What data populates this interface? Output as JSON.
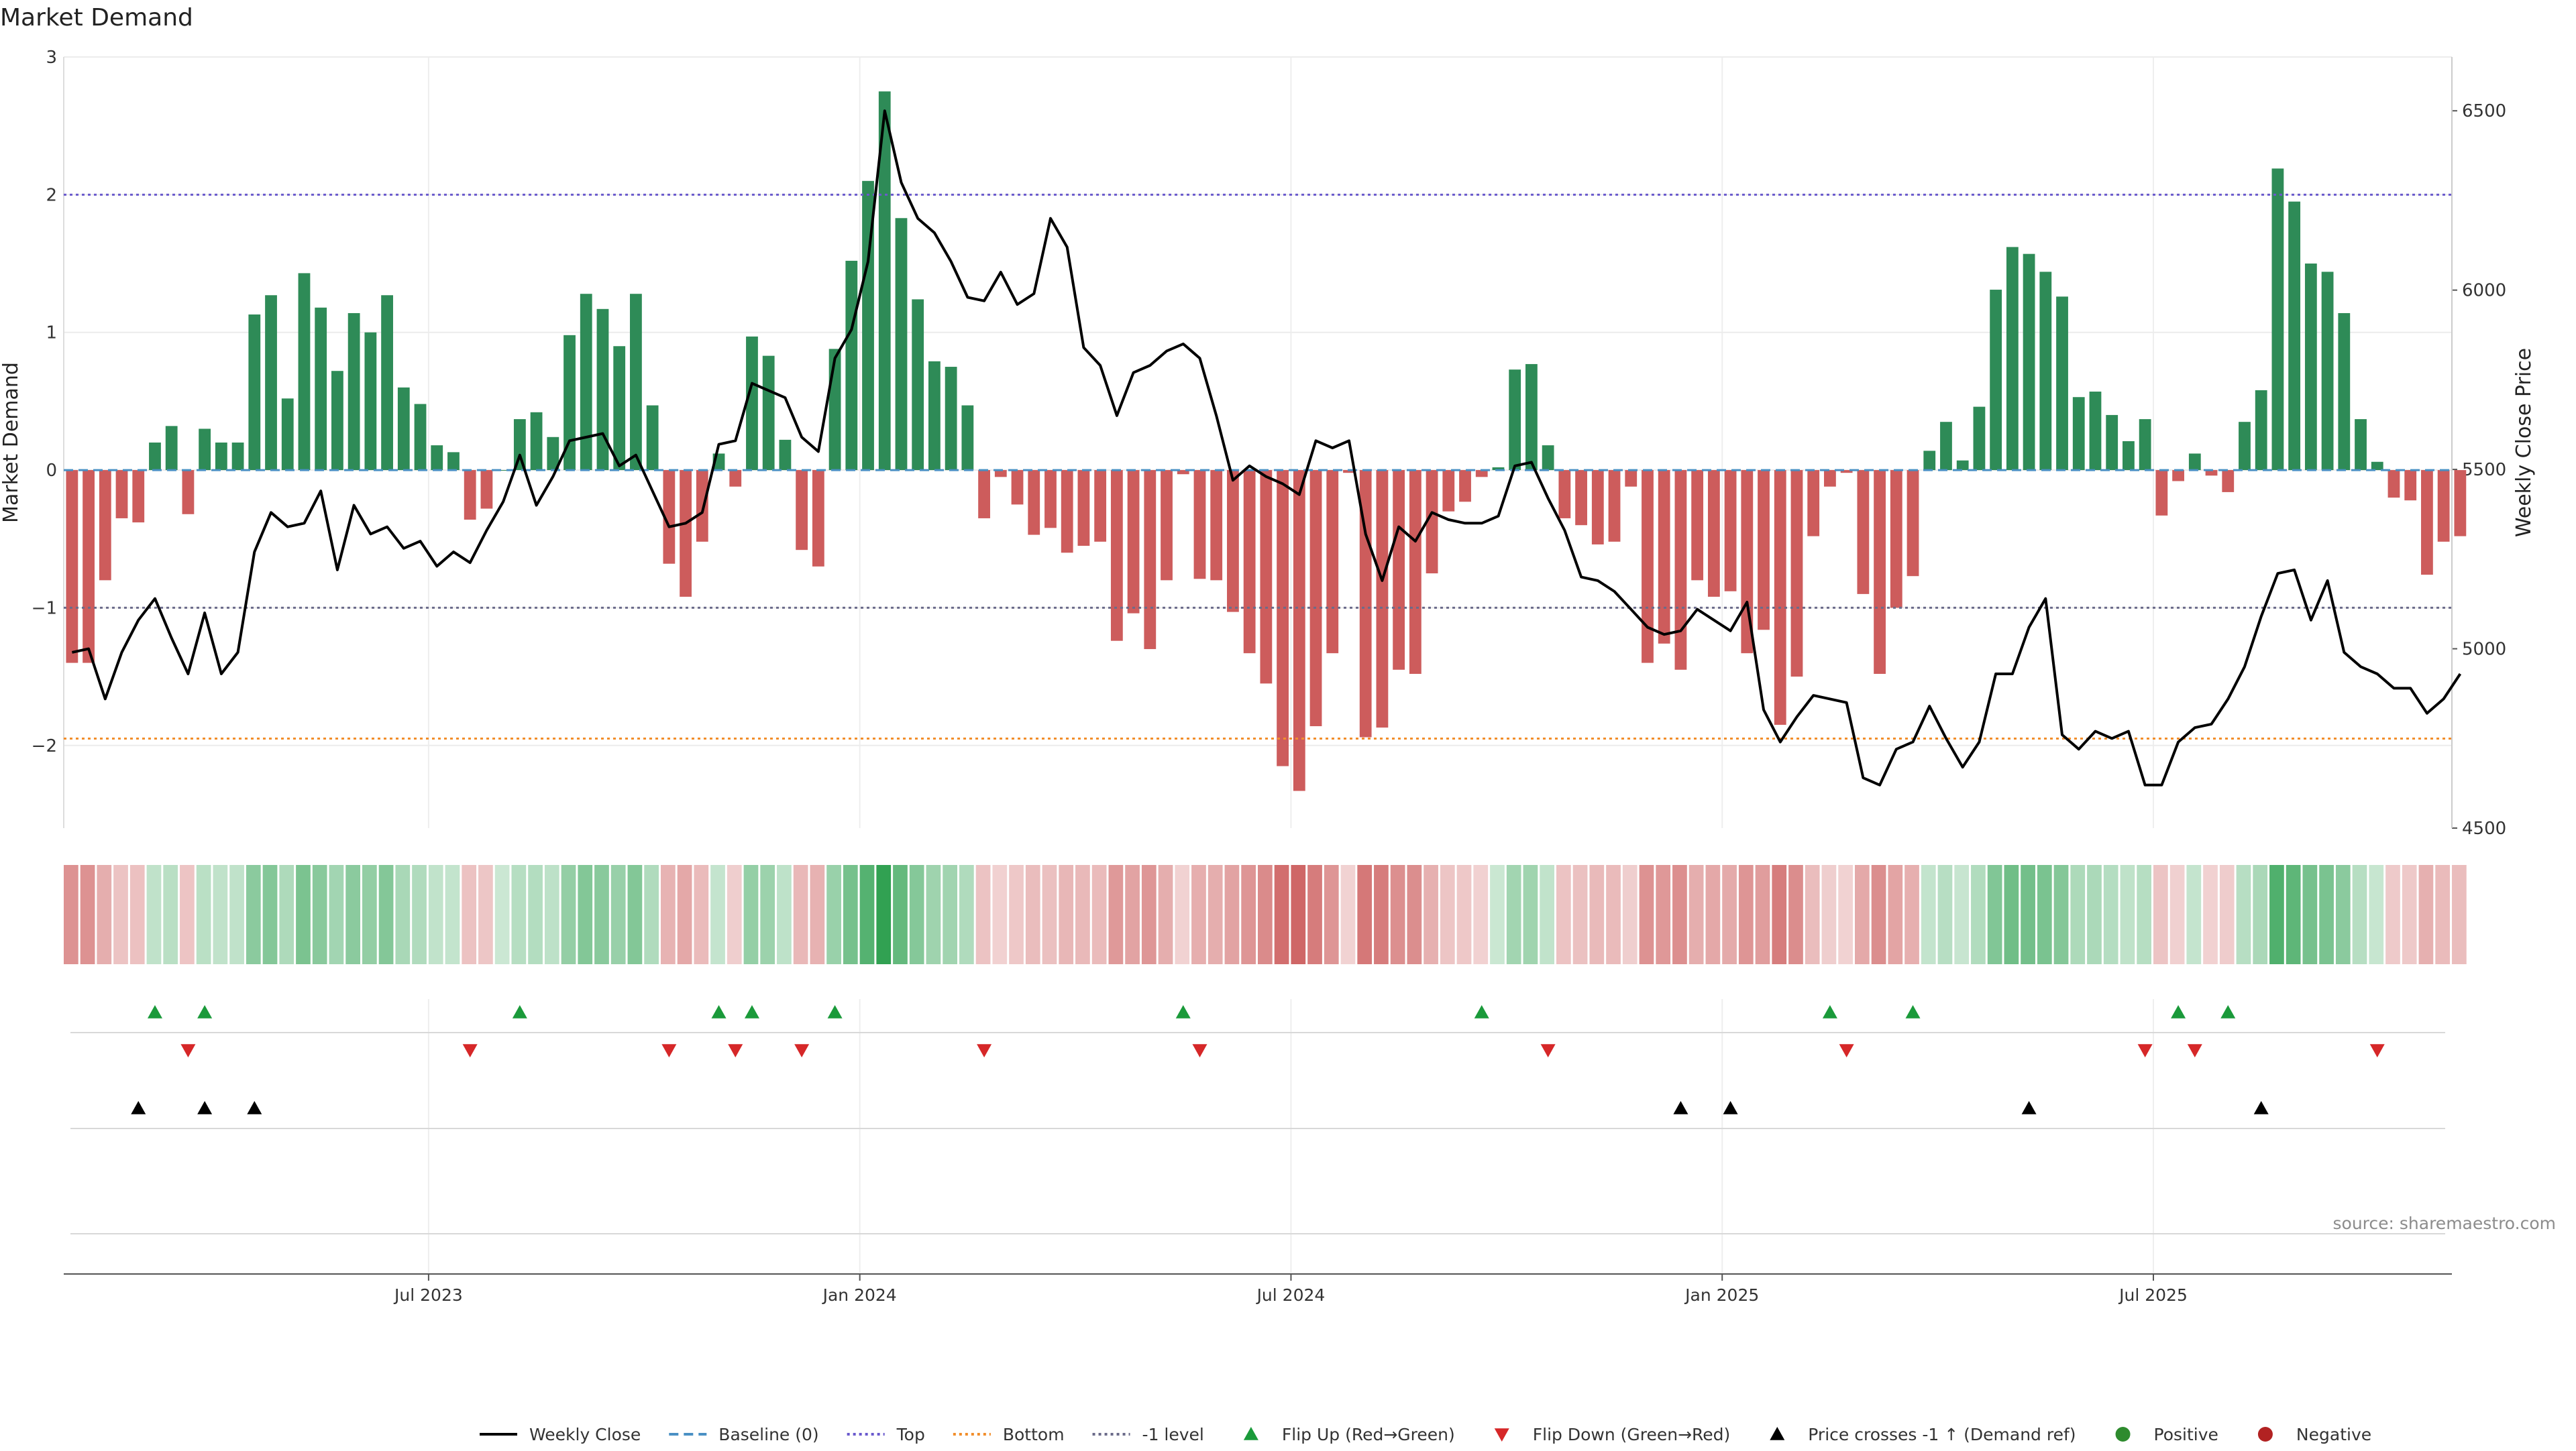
{
  "chart_data": {
    "type": "bar",
    "title": "Market Demand",
    "ylabel_left": "Market Demand",
    "ylabel_right": "Weekly Close Price",
    "ylim_left": [
      -2.6,
      3.0
    ],
    "ylim_right": [
      4500,
      6650
    ],
    "yticks_left": [
      -2,
      -1,
      0,
      1,
      2,
      3
    ],
    "ytick_labels_left": [
      "−2",
      "−1",
      "0",
      "1",
      "2",
      "3"
    ],
    "yticks_right": [
      4500,
      5000,
      5500,
      6000,
      6500
    ],
    "ytick_labels_right": [
      "4500",
      "5000",
      "5500",
      "6000",
      "6500"
    ],
    "xaxis": {
      "start": "2023-02-13",
      "weeks": 144,
      "ticks": [
        {
          "week": 22,
          "label": "Jul 2023"
        },
        {
          "week": 48,
          "label": "Jan 2024"
        },
        {
          "week": 74,
          "label": "Jul 2024"
        },
        {
          "week": 100,
          "label": "Jan 2025"
        },
        {
          "week": 126,
          "label": "Jul 2025"
        }
      ]
    },
    "reference_lines": [
      {
        "name": "Baseline (0)",
        "value": 0,
        "color": "#4a90c4",
        "style": "dashed"
      },
      {
        "name": "Top",
        "value": 2.0,
        "color": "#6a5acd",
        "style": "dotted"
      },
      {
        "name": "Bottom",
        "value": -1.95,
        "color": "#f28e2b",
        "style": "dotted"
      },
      {
        "name": "-1 level",
        "value": -1.0,
        "color": "#6b6b8a",
        "style": "dotted"
      }
    ],
    "colors": {
      "positive": "#2e8b57",
      "negative": "#cd5c5c",
      "price": "#000000",
      "flip_up": "#1a9a3a",
      "flip_down": "#d62728",
      "cross": "#000000",
      "pos_legend": "#2e8b2e",
      "neg_legend": "#b22222"
    },
    "series": [
      {
        "name": "Market Demand",
        "values": [
          -1.4,
          -1.4,
          -0.8,
          -0.35,
          -0.38,
          0.2,
          0.32,
          -0.32,
          0.3,
          0.2,
          0.2,
          1.13,
          1.27,
          0.52,
          1.43,
          1.18,
          0.72,
          1.14,
          1.0,
          1.27,
          0.6,
          0.48,
          0.18,
          0.13,
          -0.36,
          -0.28,
          0.0,
          0.37,
          0.42,
          0.24,
          0.98,
          1.28,
          1.17,
          0.9,
          1.28,
          0.47,
          -0.68,
          -0.92,
          -0.52,
          0.12,
          -0.12,
          0.97,
          0.83,
          0.22,
          -0.58,
          -0.7,
          0.88,
          1.52,
          2.1,
          2.75,
          1.83,
          1.24,
          0.79,
          0.75,
          0.47,
          -0.35,
          -0.05,
          -0.25,
          -0.47,
          -0.42,
          -0.6,
          -0.55,
          -0.52,
          -1.24,
          -1.04,
          -1.3,
          -0.8,
          -0.03,
          -0.79,
          -0.8,
          -1.03,
          -1.33,
          -1.55,
          -2.15,
          -2.33,
          -1.86,
          -1.33,
          -0.02,
          -1.94,
          -1.87,
          -1.45,
          -1.48,
          -0.75,
          -0.3,
          -0.23,
          -0.05,
          0.02,
          0.73,
          0.77,
          0.18,
          -0.35,
          -0.4,
          -0.54,
          -0.52,
          -0.12,
          -1.4,
          -1.26,
          -1.45,
          -0.8,
          -0.92,
          -0.88,
          -1.33,
          -1.16,
          -1.85,
          -1.5,
          -0.48,
          -0.12,
          -0.02,
          -0.9,
          -1.48,
          -1.0,
          -0.77,
          0.14,
          0.35,
          0.07,
          0.46,
          1.31,
          1.62,
          1.57,
          1.44,
          1.26,
          0.53,
          0.57,
          0.4,
          0.21,
          0.37,
          -0.33,
          -0.08,
          0.12,
          -0.04,
          -0.16,
          0.35,
          0.58,
          2.19,
          1.95,
          1.5,
          1.44,
          1.14,
          0.37,
          0.06,
          -0.2,
          -0.22,
          -0.76,
          -0.52,
          -0.48
        ]
      },
      {
        "name": "Weekly Close",
        "axis": "right",
        "values": [
          4990,
          5000,
          4860,
          4990,
          5080,
          5140,
          5030,
          4930,
          5100,
          4930,
          4990,
          5270,
          5380,
          5340,
          5350,
          5440,
          5220,
          5400,
          5320,
          5340,
          5280,
          5300,
          5230,
          5270,
          5240,
          5330,
          5410,
          5540,
          5400,
          5480,
          5580,
          5590,
          5600,
          5510,
          5540,
          5440,
          5340,
          5350,
          5380,
          5570,
          5580,
          5740,
          5720,
          5700,
          5590,
          5550,
          5810,
          5890,
          6080,
          6500,
          6300,
          6200,
          6160,
          6080,
          5980,
          5970,
          6050,
          5960,
          5990,
          6200,
          6120,
          5840,
          5790,
          5650,
          5770,
          5790,
          5830,
          5850,
          5810,
          5650,
          5470,
          5510,
          5480,
          5460,
          5430,
          5580,
          5560,
          5580,
          5320,
          5190,
          5340,
          5300,
          5380,
          5360,
          5350,
          5350,
          5370,
          5510,
          5520,
          5420,
          5330,
          5200,
          5190,
          5160,
          5110,
          5060,
          5040,
          5050,
          5110,
          5080,
          5050,
          5130,
          4830,
          4740,
          4810,
          4870,
          4860,
          4850,
          4640,
          4620,
          4720,
          4740,
          4840,
          4750,
          4670,
          4740,
          4930,
          4930,
          5060,
          5140,
          4760,
          4720,
          4770,
          4750,
          4770,
          4620,
          4620,
          4740,
          4780,
          4790,
          4860,
          4950,
          5090,
          5210,
          5220,
          5080,
          5190,
          4990,
          4950,
          4930,
          4890,
          4890,
          4820,
          4860,
          4930
        ]
      },
      {
        "name": "Flip Up (Red→Green)",
        "weeks": [
          5,
          8,
          27,
          39,
          41,
          46,
          67,
          85,
          106,
          111,
          127,
          130
        ]
      },
      {
        "name": "Flip Down (Green→Red)",
        "weeks": [
          7,
          24,
          36,
          40,
          44,
          55,
          68,
          89,
          107,
          125,
          128,
          139
        ]
      },
      {
        "name": "Price crosses -1 ↑ (Demand ref)",
        "weeks": [
          4,
          8,
          11,
          97,
          100,
          118,
          132
        ]
      }
    ],
    "legend": [
      {
        "label": "Weekly Close"
      },
      {
        "label": "Baseline (0)"
      },
      {
        "label": "Top"
      },
      {
        "label": "Bottom"
      },
      {
        "label": "-1 level"
      },
      {
        "label": "Flip Up (Red→Green)"
      },
      {
        "label": "Flip Down (Green→Red)"
      },
      {
        "label": "Price crosses -1 ↑ (Demand ref)"
      },
      {
        "label": "Positive"
      },
      {
        "label": "Negative"
      }
    ],
    "legend_position": "bottom-center",
    "source": "source: sharemaestro.com"
  }
}
